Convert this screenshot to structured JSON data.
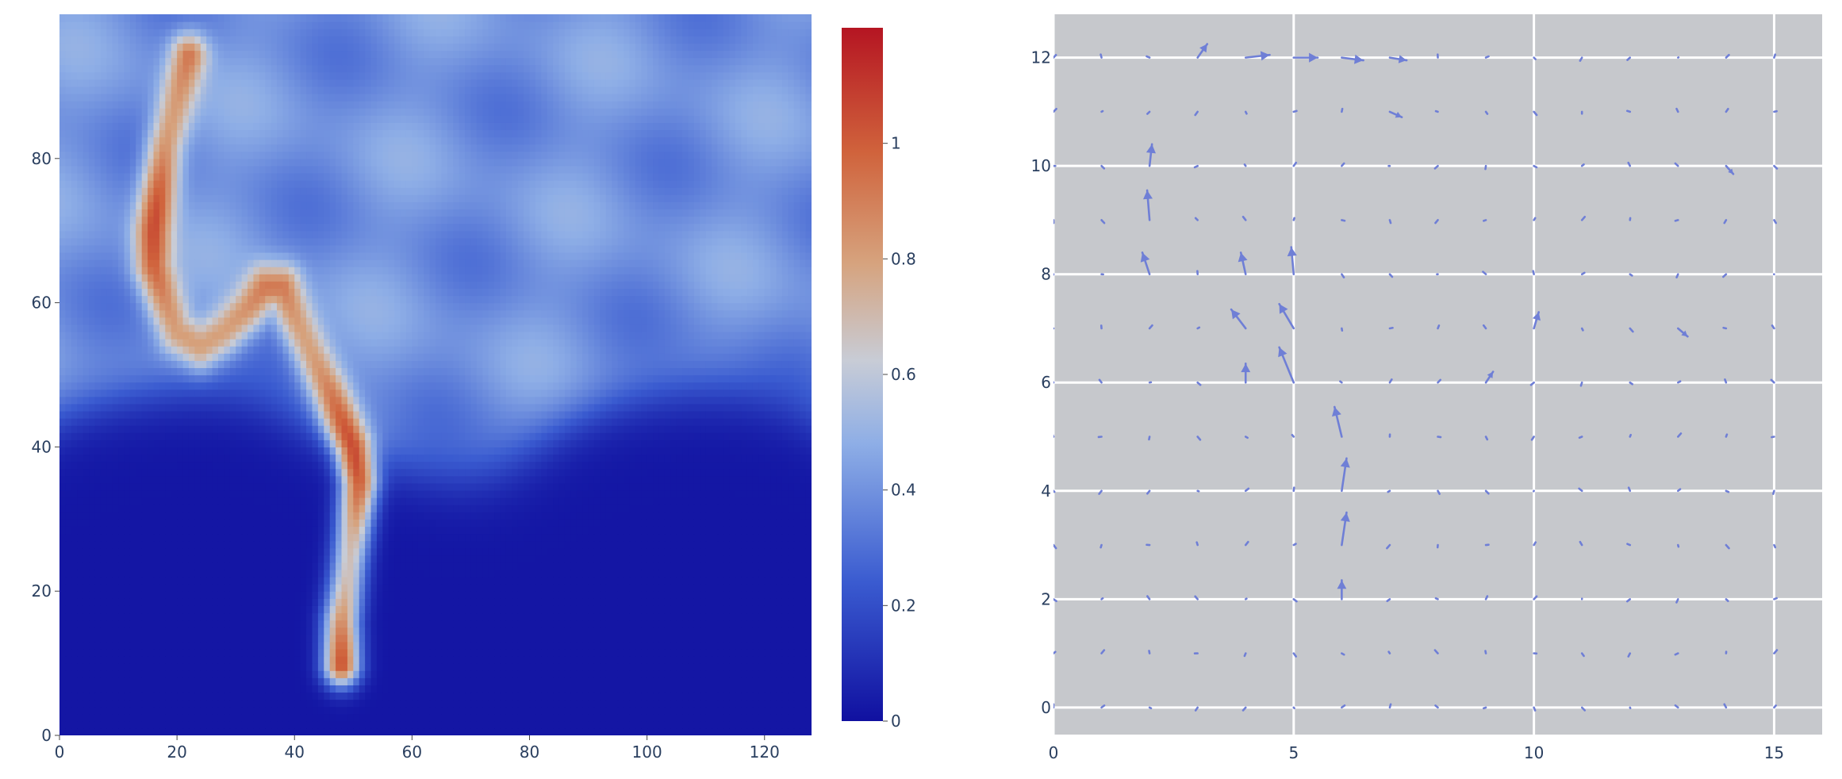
{
  "chart_data": [
    {
      "type": "heatmap",
      "title": "",
      "xlabel": "",
      "ylabel": "",
      "xlim": [
        0,
        128
      ],
      "ylim": [
        0,
        100
      ],
      "grid_size": [
        128,
        100
      ],
      "x_ticks": [
        0,
        20,
        40,
        60,
        80,
        100,
        120
      ],
      "y_ticks": [
        0,
        20,
        40,
        60,
        80
      ],
      "colorscale": [
        [
          0.0,
          "#1010a0"
        ],
        [
          0.2,
          "#3a5bd0"
        ],
        [
          0.4,
          "#8eaee6"
        ],
        [
          0.52,
          "#c8ccd6"
        ],
        [
          0.66,
          "#d6a37e"
        ],
        [
          0.82,
          "#d0633c"
        ],
        [
          1.0,
          "#b51522"
        ]
      ],
      "colorbar": {
        "range": [
          0,
          1.2
        ],
        "ticks": [
          0,
          0.2,
          0.4,
          0.6,
          0.8,
          1
        ],
        "tick_labels": [
          "0",
          "0.2",
          "0.4",
          "0.6",
          "0.8",
          "1"
        ]
      },
      "background_field": {
        "lower_value": 0.02,
        "upper_value": 0.4,
        "boundary_y": 43
      },
      "plume": {
        "peak_value": 1.05,
        "centerline": [
          [
            48,
            10
          ],
          [
            48,
            16
          ],
          [
            49,
            22
          ],
          [
            50,
            28
          ],
          [
            51,
            35
          ],
          [
            50,
            40
          ],
          [
            48,
            44
          ],
          [
            46,
            48
          ],
          [
            43,
            53
          ],
          [
            40,
            58
          ],
          [
            38,
            62
          ],
          [
            35,
            62
          ],
          [
            32,
            59
          ],
          [
            28,
            56
          ],
          [
            24,
            54
          ],
          [
            20,
            56
          ],
          [
            18,
            60
          ],
          [
            16,
            65
          ],
          [
            16,
            70
          ],
          [
            17,
            76
          ],
          [
            18,
            82
          ],
          [
            20,
            88
          ],
          [
            22,
            94
          ]
        ]
      }
    },
    {
      "type": "quiver",
      "title": "",
      "xlabel": "",
      "ylabel": "",
      "xlim": [
        0,
        16
      ],
      "ylim": [
        -0.5,
        12.8
      ],
      "x_ticks": [
        0,
        5,
        10,
        15
      ],
      "y_ticks": [
        0,
        2,
        4,
        6,
        8,
        10,
        12
      ],
      "grid": true,
      "arrow_color": "#6f7fd6",
      "plot_background": "#c6c8cc",
      "grid_x": [
        0,
        1,
        2,
        3,
        4,
        5,
        6,
        7,
        8,
        9,
        10,
        11,
        12,
        13,
        14,
        15
      ],
      "grid_y": [
        0,
        1,
        2,
        3,
        4,
        5,
        6,
        7,
        8,
        9,
        10,
        11,
        12
      ],
      "vectors": [
        {
          "x": 6,
          "y": 5,
          "u": -0.15,
          "v": 0.55
        },
        {
          "x": 5,
          "y": 6,
          "u": -0.3,
          "v": 0.65
        },
        {
          "x": 5,
          "y": 7,
          "u": -0.3,
          "v": 0.45
        },
        {
          "x": 6,
          "y": 4,
          "u": 0.1,
          "v": 0.6
        },
        {
          "x": 6,
          "y": 3,
          "u": 0.1,
          "v": 0.6
        },
        {
          "x": 6,
          "y": 2,
          "u": 0.0,
          "v": 0.35
        },
        {
          "x": 2,
          "y": 8,
          "u": -0.15,
          "v": 0.4
        },
        {
          "x": 2,
          "y": 9,
          "u": -0.05,
          "v": 0.55
        },
        {
          "x": 2,
          "y": 10,
          "u": 0.05,
          "v": 0.4
        },
        {
          "x": 4,
          "y": 7,
          "u": -0.3,
          "v": 0.35
        },
        {
          "x": 4,
          "y": 8,
          "u": -0.1,
          "v": 0.4
        },
        {
          "x": 4,
          "y": 6,
          "u": 0.0,
          "v": 0.35
        },
        {
          "x": 5,
          "y": 8,
          "u": -0.05,
          "v": 0.5
        },
        {
          "x": 3,
          "y": 12,
          "u": 0.2,
          "v": 0.25
        },
        {
          "x": 4,
          "y": 12,
          "u": 0.5,
          "v": 0.05
        },
        {
          "x": 5,
          "y": 12,
          "u": 0.5,
          "v": 0.0
        },
        {
          "x": 6,
          "y": 12,
          "u": 0.45,
          "v": -0.05
        },
        {
          "x": 7,
          "y": 12,
          "u": 0.35,
          "v": -0.05
        },
        {
          "x": 10,
          "y": 7,
          "u": 0.1,
          "v": 0.3
        },
        {
          "x": 9,
          "y": 6,
          "u": 0.15,
          "v": 0.2
        },
        {
          "x": 7,
          "y": 11,
          "u": 0.25,
          "v": -0.1
        },
        {
          "x": 14,
          "y": 10,
          "u": 0.15,
          "v": -0.15
        },
        {
          "x": 13,
          "y": 7,
          "u": 0.2,
          "v": -0.15
        }
      ],
      "background_vector": {
        "u": 0.06,
        "v": 0.06
      }
    }
  ]
}
